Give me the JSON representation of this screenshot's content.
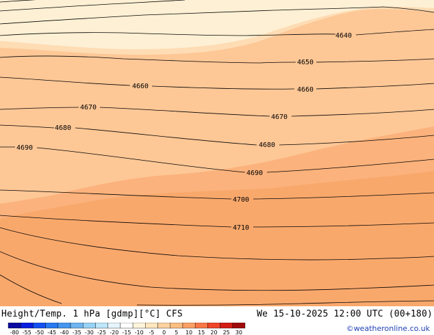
{
  "map": {
    "contour_labels": [
      {
        "id": "c4640",
        "text": "4640"
      },
      {
        "id": "c4650",
        "text": "4650"
      },
      {
        "id": "c4660a",
        "text": "4660"
      },
      {
        "id": "c4660b",
        "text": "4660"
      },
      {
        "id": "c4670a",
        "text": "4670"
      },
      {
        "id": "c4670b",
        "text": "4670"
      },
      {
        "id": "c4680a",
        "text": "4680"
      },
      {
        "id": "c4680b",
        "text": "4680"
      },
      {
        "id": "c4690a",
        "text": "4690"
      },
      {
        "id": "c4690b",
        "text": "4690"
      },
      {
        "id": "c4700",
        "text": "4700"
      },
      {
        "id": "c4710",
        "text": "4710"
      }
    ],
    "fill_colors": {
      "coldest": "#fef0d4",
      "cold": "#fedcb4",
      "mid": "#fdc796",
      "warm": "#fbb27c",
      "warmest": "#f9a86c"
    }
  },
  "footer": {
    "title": "Height/Temp. 1 hPa [gdmp][°C] CFS",
    "valid_time": "We 15-10-2025 12:00 UTC (00+180)",
    "credit": "©weatheronline.co.uk"
  },
  "legend": {
    "ticks": [
      "-80",
      "-55",
      "-50",
      "-45",
      "-40",
      "-35",
      "-30",
      "-25",
      "-20",
      "-15",
      "-10",
      "-5",
      "0",
      "5",
      "10",
      "15",
      "20",
      "25",
      "30"
    ],
    "colors": [
      "#0a0aa0",
      "#0a1ee0",
      "#1450f0",
      "#2878f0",
      "#4696f0",
      "#6eb4f0",
      "#96d2f5",
      "#bee6fa",
      "#e6f5fc",
      "#ffffff",
      "#fff5dc",
      "#fee6be",
      "#fdd2a0",
      "#fcbe82",
      "#fba064",
      "#fa7846",
      "#f04628",
      "#d21e14",
      "#a00a0a"
    ]
  }
}
